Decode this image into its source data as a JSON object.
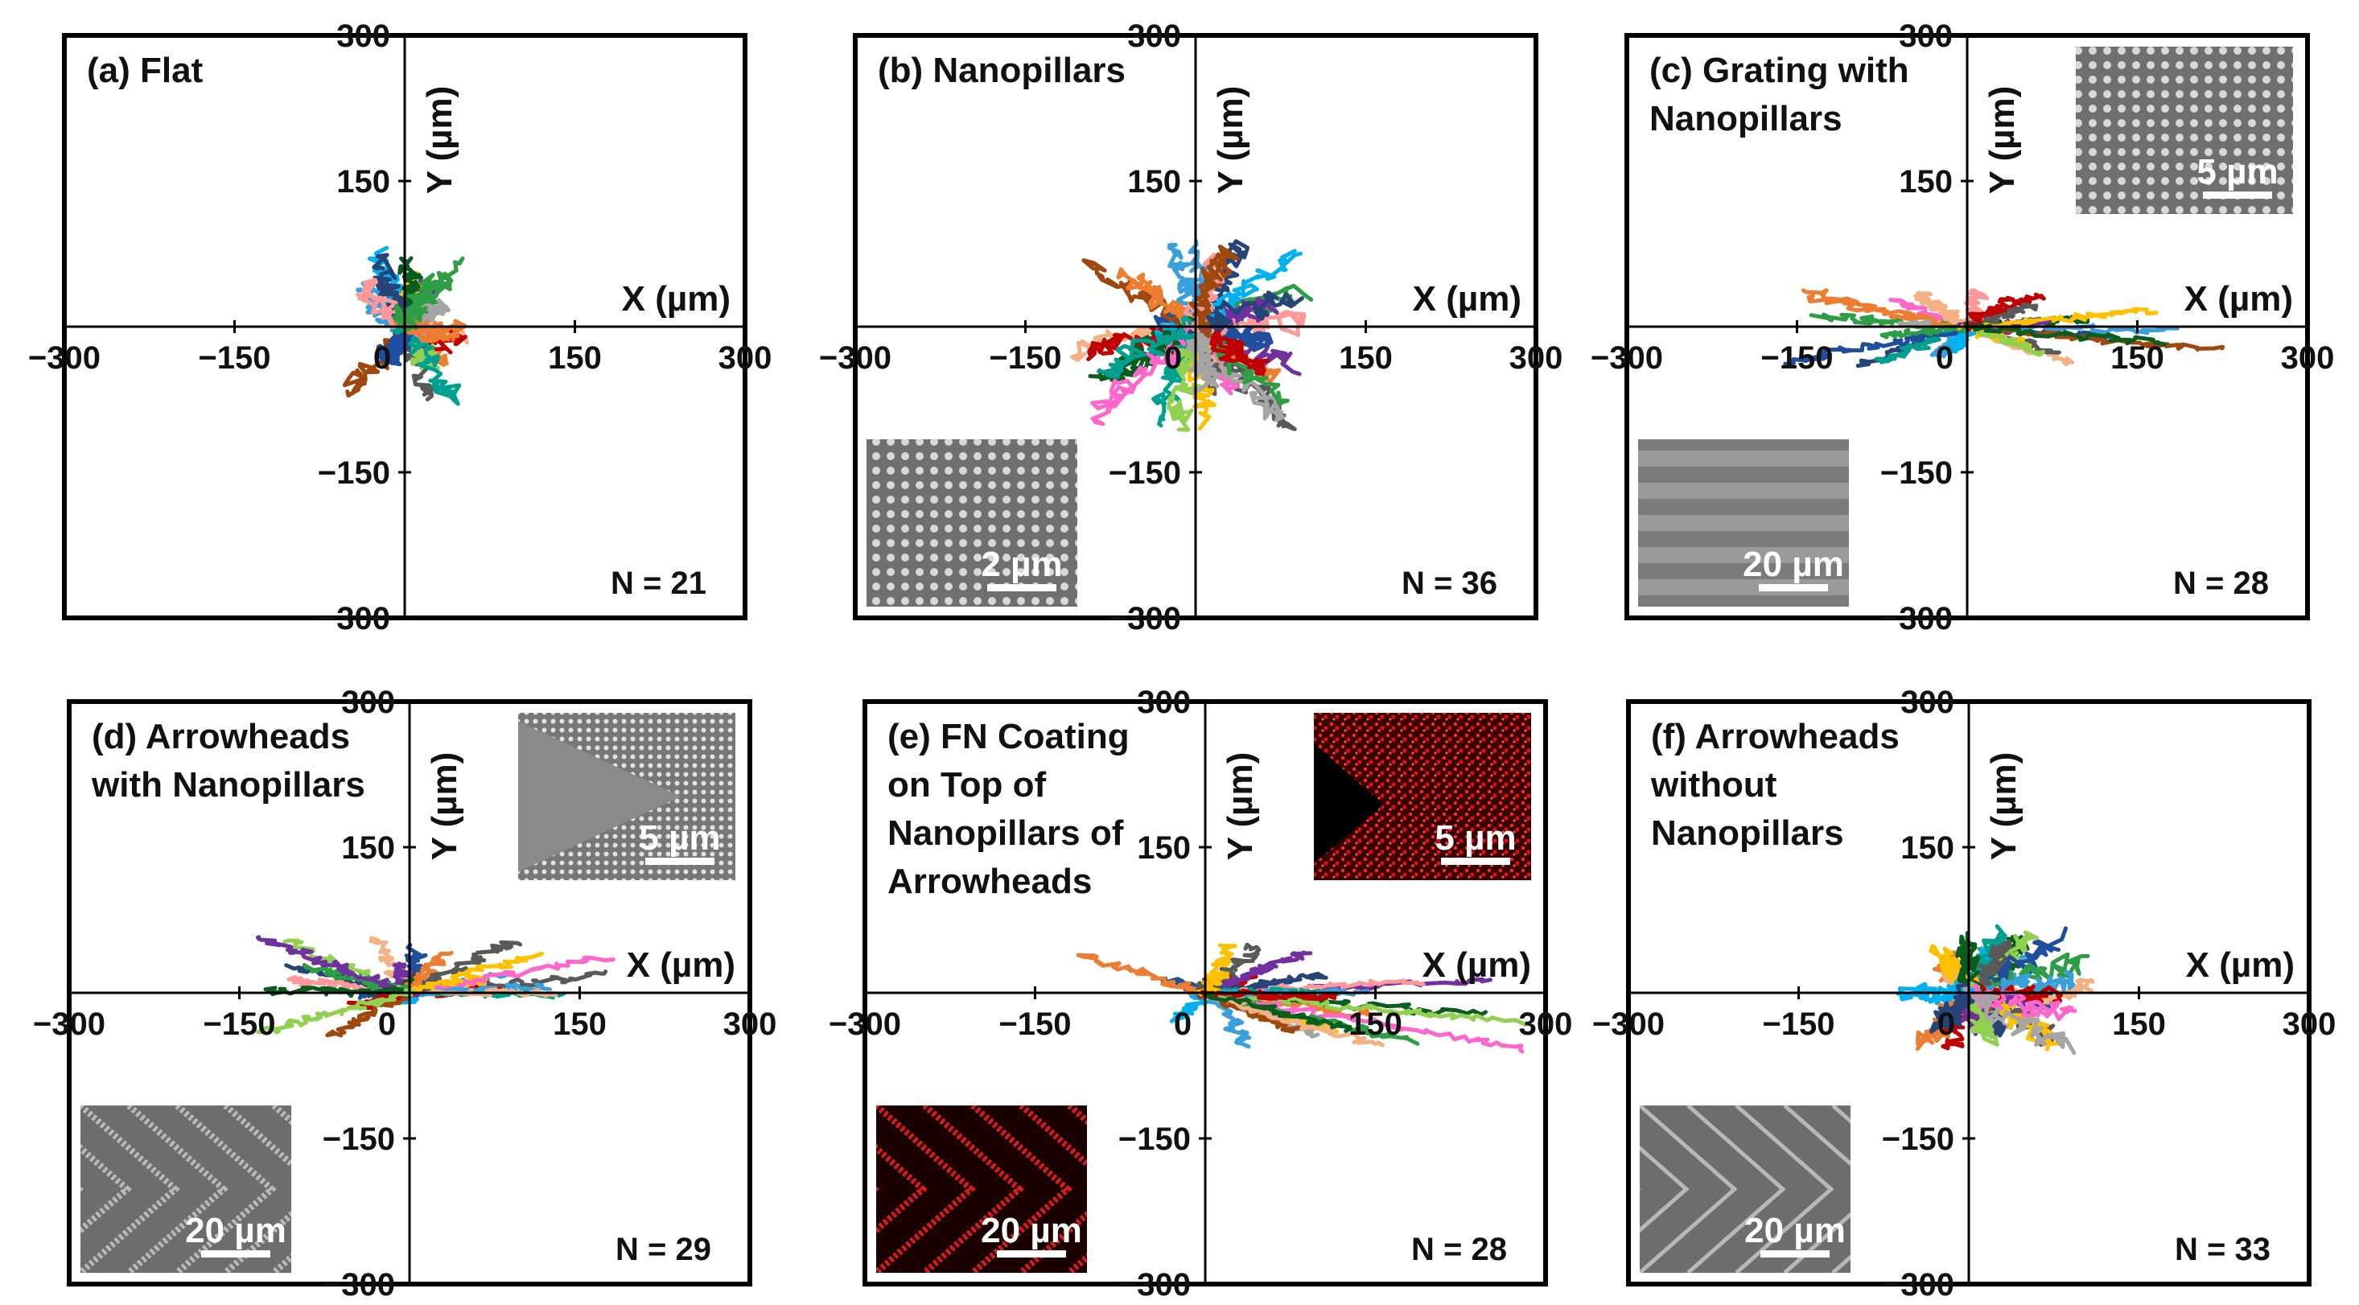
{
  "chart_data": [
    {
      "type": "scatter",
      "panel": "a",
      "title_lines": [
        "(a) Flat"
      ],
      "xlabel": "X (µm)",
      "ylabel": "Y (µm)",
      "xlim": [
        -300,
        300
      ],
      "ylim": [
        -300,
        300
      ],
      "xticks": [
        "−300",
        "−150",
        "0",
        "150",
        "300"
      ],
      "yticks": [
        "300",
        "150",
        "0",
        "−150",
        "−300"
      ],
      "grid": false,
      "n_label": "N = 21",
      "n_tracks": 21,
      "spread_x": [
        -50,
        50
      ],
      "spread_y": [
        -80,
        70
      ],
      "insets": []
    },
    {
      "type": "scatter",
      "panel": "b",
      "title_lines": [
        "(b) Nanopillars"
      ],
      "xlabel": "X (µm)",
      "ylabel": "Y (µm)",
      "xlim": [
        -300,
        300
      ],
      "ylim": [
        -300,
        300
      ],
      "xticks": [
        "−300",
        "−150",
        "0",
        "150",
        "300"
      ],
      "yticks": [
        "300",
        "150",
        "0",
        "−150",
        "−300"
      ],
      "grid": false,
      "n_label": "N = 36",
      "n_tracks": 36,
      "spread_x": [
        -110,
        100
      ],
      "spread_y": [
        -120,
        100
      ],
      "insets": [
        {
          "kind": "sem-dots",
          "position": "bottom-left",
          "scale_label": "2 µm"
        }
      ]
    },
    {
      "type": "scatter",
      "panel": "c",
      "title_lines": [
        "(c) Grating with",
        "Nanopillars"
      ],
      "xlabel": "X (µm)",
      "ylabel": "Y (µm)",
      "xlim": [
        -300,
        300
      ],
      "ylim": [
        -300,
        300
      ],
      "xticks": [
        "−300",
        "−150",
        "0",
        "150",
        "300"
      ],
      "yticks": [
        "300",
        "150",
        "0",
        "−150",
        "−300"
      ],
      "grid": false,
      "n_label": "N = 28",
      "n_tracks": 28,
      "spread_x": [
        -170,
        230
      ],
      "spread_y": [
        -50,
        40
      ],
      "insets": [
        {
          "kind": "sem-dots",
          "position": "top-right",
          "scale_label": "5 µm"
        },
        {
          "kind": "sem-stripes",
          "position": "bottom-left",
          "scale_label": "20 µm"
        }
      ]
    },
    {
      "type": "scatter",
      "panel": "d",
      "title_lines": [
        "(d) Arrowheads",
        "with Nanopillars"
      ],
      "xlabel": "X (µm)",
      "ylabel": "Y (µm)",
      "xlim": [
        -300,
        300
      ],
      "ylim": [
        -300,
        300
      ],
      "xticks": [
        "−300",
        "−150",
        "0",
        "150",
        "300"
      ],
      "yticks": [
        "300",
        "150",
        "0",
        "−150",
        "−300"
      ],
      "grid": false,
      "n_label": "N = 29",
      "n_tracks": 29,
      "spread_x": [
        -140,
        190
      ],
      "spread_y": [
        -45,
        60
      ],
      "insets": [
        {
          "kind": "sem-arrow-dots",
          "position": "top-right",
          "scale_label": "5 µm"
        },
        {
          "kind": "sem-chevrons",
          "position": "bottom-left",
          "scale_label": "20 µm"
        }
      ]
    },
    {
      "type": "scatter",
      "panel": "e",
      "title_lines": [
        "(e) FN Coating",
        "on Top of",
        "Nanopillars of",
        "Arrowheads"
      ],
      "xlabel": "X (µm)",
      "ylabel": "Y (µm)",
      "xlim": [
        -300,
        300
      ],
      "ylim": [
        -300,
        300
      ],
      "xticks": [
        "−300",
        "−150",
        "0",
        "150",
        "300"
      ],
      "yticks": [
        "300",
        "150",
        "0",
        "−150",
        "−300"
      ],
      "grid": false,
      "n_label": "N = 28",
      "n_tracks": 28,
      "spread_x": [
        -160,
        290
      ],
      "spread_y": [
        -70,
        50
      ],
      "insets": [
        {
          "kind": "fluor-arrow",
          "position": "top-right",
          "scale_label": "5 µm"
        },
        {
          "kind": "fluor-chevrons",
          "position": "bottom-left",
          "scale_label": "20 µm"
        }
      ]
    },
    {
      "type": "scatter",
      "panel": "f",
      "title_lines": [
        "(f) Arrowheads",
        "without",
        "Nanopillars"
      ],
      "xlabel": "X (µm)",
      "ylabel": "Y (µm)",
      "xlim": [
        -300,
        300
      ],
      "ylim": [
        -300,
        300
      ],
      "xticks": [
        "−300",
        "−150",
        "0",
        "150",
        "300"
      ],
      "yticks": [
        "300",
        "150",
        "0",
        "−150",
        "−300"
      ],
      "grid": false,
      "n_label": "N = 33",
      "n_tracks": 33,
      "spread_x": [
        -70,
        110
      ],
      "spread_y": [
        -60,
        60
      ],
      "insets": [
        {
          "kind": "sem-chevrons-plain",
          "position": "bottom-left",
          "scale_label": "20 µm"
        }
      ]
    }
  ],
  "track_colors": [
    "#1f4e9e",
    "#ed7d31",
    "#2e9e44",
    "#3aa0dc",
    "#f4b183",
    "#7030a0",
    "#595959",
    "#ffc000",
    "#c00000",
    "#0b5d1e",
    "#92d050",
    "#ff66cc",
    "#00b0f0",
    "#a5a5a5",
    "#264478",
    "#ff9999",
    "#9e480e",
    "#00a091"
  ]
}
